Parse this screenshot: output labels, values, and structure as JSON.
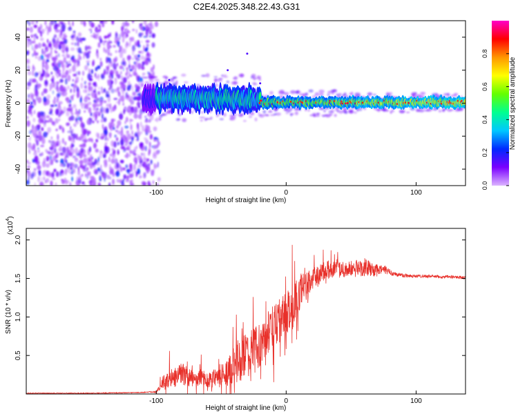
{
  "figure": {
    "title": "C2E4.2025.348.22.43.G31"
  },
  "chart_data": [
    {
      "type": "heatmap",
      "name": "spectrogram",
      "xlabel": "Height of straight line (km)",
      "ylabel": "Frequency (Hz)",
      "xlim": [
        -200,
        138
      ],
      "ylim": [
        -50,
        50
      ],
      "xticks": [
        -100,
        0,
        100
      ],
      "xtick_labels": [
        "-100",
        "0",
        "100"
      ],
      "yticks": [
        40,
        20,
        0,
        -20,
        -40
      ],
      "ytick_labels": [
        "40",
        "20",
        "0",
        "-20",
        "-40"
      ],
      "colorbar": {
        "label": "Normalized spectral amplitude",
        "range": [
          0,
          1
        ],
        "ticks": [
          0.0,
          0.2,
          0.4,
          0.6,
          0.8
        ],
        "tick_labels": [
          "0.0",
          "0.2",
          "0.4",
          "0.6",
          "0.8"
        ],
        "colormap": [
          "#dcb4ff",
          "#7a00ff",
          "#0028ff",
          "#00c8ff",
          "#00ff90",
          "#64ff00",
          "#ffff00",
          "#ff9600",
          "#ff0000",
          "#ff00c8"
        ]
      },
      "regions": [
        {
          "description": "broadband noise",
          "x_range": [
            -200,
            -105
          ],
          "freq_range": [
            -50,
            50
          ],
          "amplitude": 0.15
        },
        {
          "description": "signal ridge",
          "x_range": [
            -110,
            138
          ],
          "center_freq": 0,
          "amplitude_peak": 0.9
        }
      ]
    },
    {
      "type": "line",
      "name": "snr",
      "xlabel": "Height of straight line (km)",
      "ylabel": "SNR (10 * v/v)",
      "y_scale_label": "(x10",
      "y_scale_exponent": "4",
      "xlim": [
        -200,
        138
      ],
      "ylim": [
        0,
        2.15
      ],
      "xticks": [
        -100,
        0,
        100
      ],
      "xtick_labels": [
        "-100",
        "0",
        "100"
      ],
      "yticks": [
        0.5,
        1.0,
        1.5,
        2.0
      ],
      "ytick_labels": [
        "0.5",
        "1.0",
        "1.5",
        "2.0"
      ],
      "color": "#e8302a",
      "series": [
        {
          "name": "SNR",
          "x": [
            -200,
            -150,
            -110,
            -100,
            -95,
            -90,
            -85,
            -80,
            -75,
            -70,
            -65,
            -60,
            -55,
            -50,
            -45,
            -40,
            -35,
            -30,
            -25,
            -20,
            -15,
            -10,
            -5,
            0,
            5,
            10,
            15,
            20,
            25,
            30,
            35,
            40,
            45,
            50,
            55,
            60,
            65,
            70,
            75,
            80,
            85,
            90,
            100,
            110,
            120,
            130,
            138
          ],
          "values": [
            0.01,
            0.01,
            0.02,
            0.03,
            0.15,
            0.2,
            0.22,
            0.28,
            0.22,
            0.2,
            0.22,
            0.18,
            0.2,
            0.25,
            0.28,
            0.4,
            0.45,
            0.5,
            0.55,
            0.65,
            0.75,
            0.85,
            0.95,
            1.05,
            1.1,
            1.3,
            1.4,
            1.5,
            1.55,
            1.6,
            1.62,
            1.63,
            1.62,
            1.62,
            1.63,
            1.65,
            1.62,
            1.6,
            1.62,
            1.58,
            1.55,
            1.54,
            1.53,
            1.53,
            1.52,
            1.52,
            1.51
          ],
          "noise": [
            0.005,
            0.005,
            0.005,
            0.01,
            0.08,
            0.12,
            0.12,
            0.14,
            0.12,
            0.1,
            0.12,
            0.1,
            0.12,
            0.16,
            0.18,
            0.25,
            0.3,
            0.3,
            0.3,
            0.3,
            0.3,
            0.3,
            0.3,
            0.28,
            0.28,
            0.25,
            0.2,
            0.15,
            0.13,
            0.12,
            0.12,
            0.12,
            0.11,
            0.11,
            0.12,
            0.12,
            0.1,
            0.08,
            0.06,
            0.04,
            0.03,
            0.03,
            0.02,
            0.02,
            0.02,
            0.02,
            0.02
          ]
        }
      ]
    }
  ]
}
